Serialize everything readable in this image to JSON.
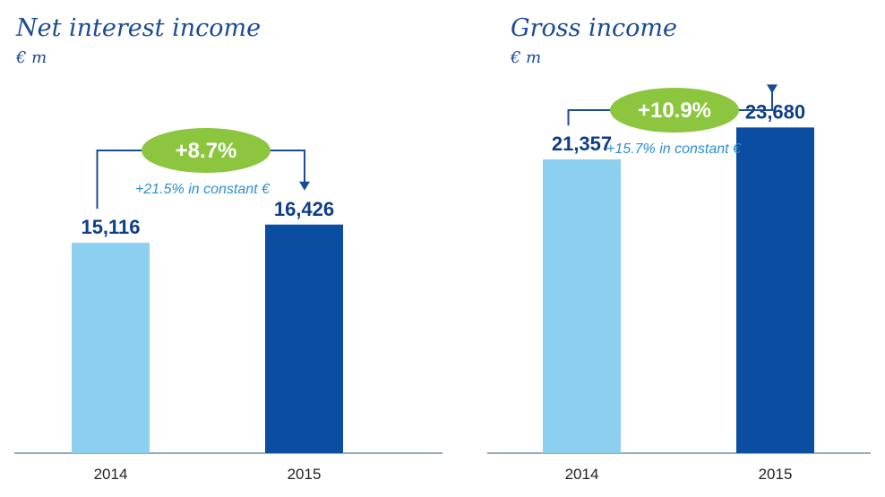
{
  "chart_data": [
    {
      "type": "bar",
      "title": "Net interest income",
      "unit": "€ m",
      "categories": [
        "2014",
        "2015"
      ],
      "values": [
        15116,
        16426
      ],
      "value_labels": [
        "15,116",
        "16,426"
      ],
      "bar_colors": [
        "#8ccfef",
        "#0b4da1"
      ],
      "growth_label": "+8.7%",
      "constant_label": "+21.5% in constant €",
      "ylim": [
        0,
        26000
      ],
      "grid": false
    },
    {
      "type": "bar",
      "title": "Gross income",
      "unit": "€ m",
      "categories": [
        "2014",
        "2015"
      ],
      "values": [
        21357,
        23680
      ],
      "value_labels": [
        "21,357",
        "23,680"
      ],
      "bar_colors": [
        "#8ccfef",
        "#0b4da1"
      ],
      "growth_label": "+10.9%",
      "constant_label": "+15.7% in constant €",
      "ylim": [
        0,
        28000
      ],
      "grid": false
    }
  ],
  "colors": {
    "title": "#1a4b96",
    "value": "#0e3e8a",
    "growth_pill": "#8cc63f",
    "connector": "#1a4b96",
    "constant_text": "#2a8fd0",
    "axis": "#7a8fa8"
  }
}
